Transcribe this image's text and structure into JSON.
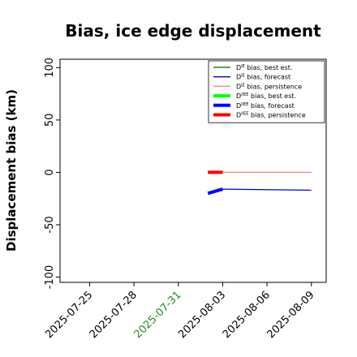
{
  "chart_data": {
    "type": "line",
    "title": "Bias, ice edge displacement",
    "ylabel": "Displacement bias (km)",
    "xlabel": "",
    "ylim": [
      -105,
      108
    ],
    "xlim": [
      "2025-07-23",
      "2025-08-10"
    ],
    "grid": false,
    "legend_position": "top-right",
    "yticks": [
      "100",
      "50",
      "0",
      "-50",
      "-100"
    ],
    "ytick_values": [
      100,
      50,
      0,
      -50,
      -100
    ],
    "xticks": [
      {
        "label": "2025-07-25",
        "date": "2025-07-25",
        "color": "#000000"
      },
      {
        "label": "2025-07-28",
        "date": "2025-07-28",
        "color": "#000000"
      },
      {
        "label": "2025-07-31",
        "date": "2025-07-31",
        "color": "#228b22"
      },
      {
        "label": "2025-08-03",
        "date": "2025-08-03",
        "color": "#000000"
      },
      {
        "label": "2025-08-06",
        "date": "2025-08-06",
        "color": "#000000"
      },
      {
        "label": "2025-08-09",
        "date": "2025-08-09",
        "color": "#000000"
      }
    ],
    "series": [
      {
        "name": "D^IE bias, best est.",
        "color": "#006400",
        "thick": false,
        "points": []
      },
      {
        "name": "D^IE bias, forecast",
        "color": "#0000cd",
        "thick": false,
        "points": [
          [
            "2025-08-03",
            -16
          ],
          [
            "2025-08-09",
            -17
          ]
        ]
      },
      {
        "name": "D^IE bias, persistence",
        "color": "#f08080",
        "thick": false,
        "points": [
          [
            "2025-08-03",
            0
          ],
          [
            "2025-08-09",
            0
          ]
        ]
      },
      {
        "name": "D^IIEE bias, best est.",
        "color": "#00ff00",
        "thick": true,
        "points": []
      },
      {
        "name": "D^IIEE bias, forecast",
        "color": "#0000ff",
        "thick": true,
        "points": [
          [
            "2025-08-02",
            -20
          ],
          [
            "2025-08-03",
            -16
          ]
        ]
      },
      {
        "name": "D^IIEE bias, persistence",
        "color": "#ff0000",
        "thick": true,
        "points": [
          [
            "2025-08-02",
            0
          ],
          [
            "2025-08-03",
            0
          ]
        ]
      }
    ]
  },
  "legend": [
    {
      "pre": "D",
      "sup": "IE",
      "post": " bias, best est."
    },
    {
      "pre": "D",
      "sup": "IE",
      "post": " bias, forecast"
    },
    {
      "pre": "D",
      "sup": "IE",
      "post": " bias, persistence"
    },
    {
      "pre": "D",
      "sup": "IIEE",
      "post": " bias, best est."
    },
    {
      "pre": "D",
      "sup": "IIEE",
      "post": " bias, forecast"
    },
    {
      "pre": "D",
      "sup": "IIEE",
      "post": " bias, persistence"
    }
  ]
}
